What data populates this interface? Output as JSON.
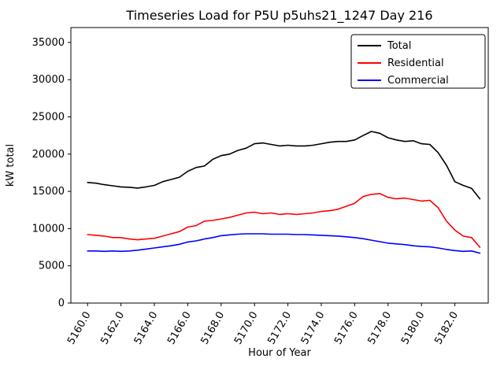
{
  "figure": {
    "background": "#ffffff"
  },
  "chart_data": {
    "type": "line",
    "title": "Timeseries Load for P5U p5uhs21_1247  Day 216",
    "xlabel": "Hour of Year",
    "ylabel": "kW total",
    "xlim": [
      5159.0,
      5184.0
    ],
    "ylim": [
      0,
      37000
    ],
    "grid": false,
    "legend_position": "upper right",
    "xticks": [
      5160,
      5162,
      5164,
      5166,
      5168,
      5170,
      5172,
      5174,
      5176,
      5178,
      5180,
      5182
    ],
    "xtick_labels": [
      "5160.0",
      "5162.0",
      "5164.0",
      "5166.0",
      "5168.0",
      "5170.0",
      "5172.0",
      "5174.0",
      "5176.0",
      "5178.0",
      "5180.0",
      "5182.0"
    ],
    "yticks": [
      0,
      5000,
      10000,
      15000,
      20000,
      25000,
      30000,
      35000
    ],
    "ytick_labels": [
      "0",
      "5000",
      "10000",
      "15000",
      "20000",
      "25000",
      "30000",
      "35000"
    ],
    "x": [
      5160.0,
      5160.5,
      5161.0,
      5161.5,
      5162.0,
      5162.5,
      5163.0,
      5163.5,
      5164.0,
      5164.5,
      5165.0,
      5165.5,
      5166.0,
      5166.5,
      5167.0,
      5167.5,
      5168.0,
      5168.5,
      5169.0,
      5169.5,
      5170.0,
      5170.5,
      5171.0,
      5171.5,
      5172.0,
      5172.5,
      5173.0,
      5173.5,
      5174.0,
      5174.5,
      5175.0,
      5175.5,
      5176.0,
      5176.5,
      5177.0,
      5177.5,
      5178.0,
      5178.5,
      5179.0,
      5179.5,
      5180.0,
      5180.5,
      5181.0,
      5181.5,
      5182.0,
      5182.5,
      5183.0,
      5183.5
    ],
    "series": [
      {
        "name": "Total",
        "color": "#000000",
        "values": [
          16200,
          16100,
          15900,
          15750,
          15600,
          15550,
          15450,
          15600,
          15800,
          16300,
          16600,
          16900,
          17700,
          18200,
          18400,
          19300,
          19800,
          20000,
          20500,
          20800,
          21400,
          21500,
          21300,
          21100,
          21200,
          21100,
          21100,
          21200,
          21400,
          21600,
          21700,
          21700,
          21900,
          22500,
          23050,
          22800,
          22200,
          21900,
          21700,
          21800,
          21400,
          21300,
          20200,
          18500,
          16300,
          15800,
          15400,
          14000
        ]
      },
      {
        "name": "Residential",
        "color": "#ff0000",
        "values": [
          9200,
          9100,
          9000,
          8800,
          8800,
          8600,
          8500,
          8600,
          8700,
          9000,
          9300,
          9600,
          10200,
          10400,
          11000,
          11100,
          11300,
          11500,
          11800,
          12100,
          12200,
          12000,
          12100,
          11900,
          12000,
          11900,
          12000,
          12100,
          12300,
          12400,
          12600,
          13000,
          13400,
          14300,
          14600,
          14700,
          14200,
          14000,
          14100,
          13900,
          13700,
          13800,
          12800,
          11000,
          9800,
          9000,
          8800,
          7500
        ]
      },
      {
        "name": "Commercial",
        "color": "#0000ff",
        "values": [
          7000,
          7000,
          6950,
          7000,
          6950,
          7000,
          7100,
          7250,
          7400,
          7550,
          7700,
          7900,
          8200,
          8350,
          8600,
          8800,
          9050,
          9150,
          9250,
          9300,
          9300,
          9300,
          9250,
          9250,
          9250,
          9200,
          9200,
          9150,
          9100,
          9050,
          9000,
          8900,
          8800,
          8650,
          8450,
          8250,
          8050,
          7950,
          7850,
          7700,
          7600,
          7550,
          7400,
          7200,
          7050,
          6950,
          7000,
          6700
        ]
      }
    ]
  }
}
